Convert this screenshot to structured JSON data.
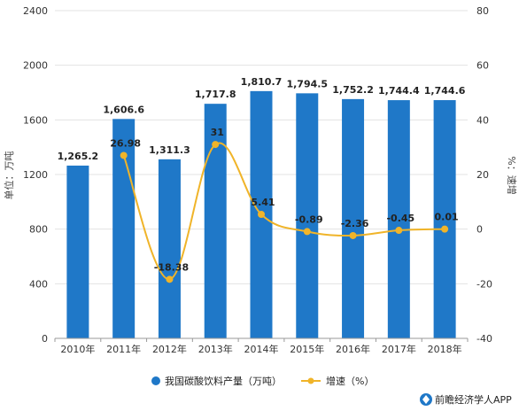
{
  "chart_data": {
    "type": "bar",
    "categories": [
      "2010年",
      "2011年",
      "2012年",
      "2013年",
      "2014年",
      "2015年",
      "2016年",
      "2017年",
      "2018年"
    ],
    "series": [
      {
        "name": "我国碳酸饮料产量（万吨）",
        "type": "bar",
        "axis": "left",
        "color": "#1f78c8",
        "values": [
          1265.2,
          1606.6,
          1311.3,
          1717.8,
          1810.7,
          1794.5,
          1752.2,
          1744.4,
          1744.6
        ],
        "labels": [
          "1,265.2",
          "1,606.6",
          "1,311.3",
          "1,717.8",
          "1,810.7",
          "1,794.5",
          "1,752.2",
          "1,744.4",
          "1,744.6"
        ]
      },
      {
        "name": "增速（%）",
        "type": "line",
        "axis": "right",
        "color": "#f0b429",
        "values": [
          null,
          26.98,
          -18.38,
          31,
          5.41,
          -0.89,
          -2.36,
          -0.45,
          0.01
        ],
        "labels": [
          "",
          "26.98",
          "-18.38",
          "31",
          "5.41",
          "-0.89",
          "-2.36",
          "-0.45",
          "0.01"
        ]
      }
    ],
    "y_left": {
      "label": "单位：万吨",
      "min": 0,
      "max": 2400,
      "ticks": [
        0,
        400,
        800,
        1200,
        1600,
        2000,
        2400
      ]
    },
    "y_right": {
      "label": "%：速增",
      "min": -40,
      "max": 80,
      "ticks": [
        -40,
        -20,
        0,
        20,
        40,
        60,
        80
      ]
    },
    "grid": true,
    "legend_position": "bottom"
  },
  "source": "前瞻经济学人APP",
  "icons": {
    "source_logo": "qianzhan-logo-icon"
  }
}
